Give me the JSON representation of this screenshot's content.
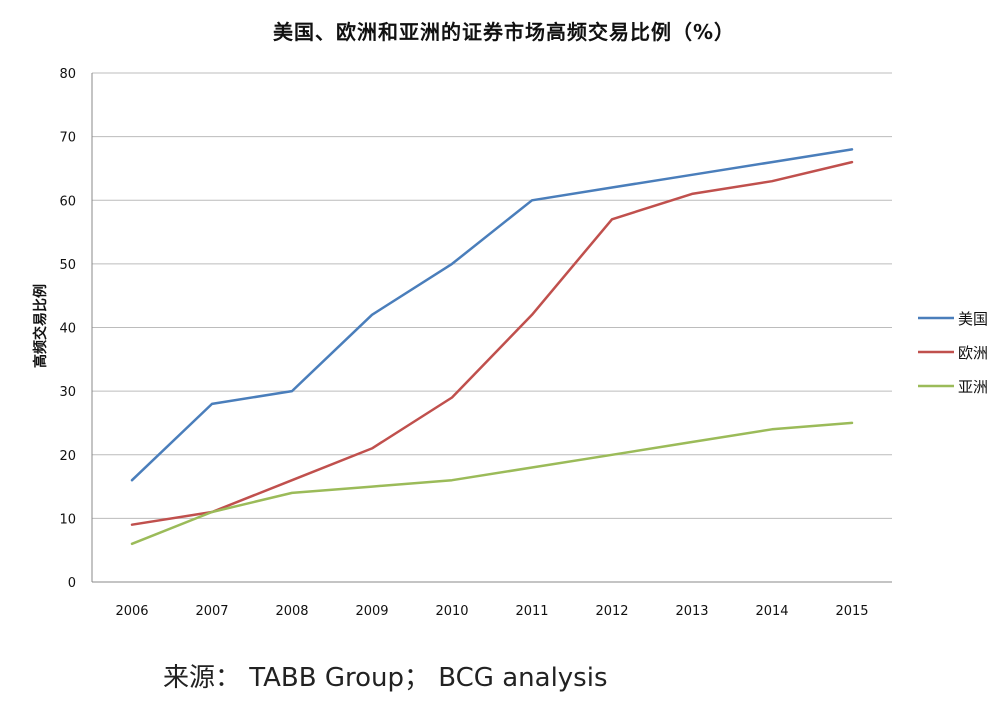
{
  "chart_data": {
    "type": "line",
    "title": "美国、欧洲和亚洲的证券市场高频交易比例（%）",
    "xlabel": "",
    "ylabel": "高频交易比例",
    "categories": [
      "2006",
      "2007",
      "2008",
      "2009",
      "2010",
      "2011",
      "2012",
      "2013",
      "2014",
      "2015"
    ],
    "ylim": [
      0,
      80
    ],
    "yticks": [
      0,
      10,
      20,
      30,
      40,
      50,
      60,
      70,
      80
    ],
    "grid": true,
    "legend_position": "right",
    "series": [
      {
        "name": "美国",
        "color": "#4a7ebb",
        "values": [
          16,
          28,
          30,
          42,
          50,
          60,
          62,
          64,
          66,
          68
        ]
      },
      {
        "name": "欧洲",
        "color": "#c0504d",
        "values": [
          9,
          11,
          16,
          21,
          29,
          42,
          57,
          61,
          63,
          66
        ]
      },
      {
        "name": "亚洲",
        "color": "#9bbb59",
        "values": [
          6,
          11,
          14,
          15,
          16,
          18,
          20,
          22,
          24,
          25
        ]
      }
    ]
  },
  "legend_labels": [
    "美国",
    "欧洲",
    "亚洲"
  ],
  "source": "来源：  TABB Group；  BCG analysis"
}
